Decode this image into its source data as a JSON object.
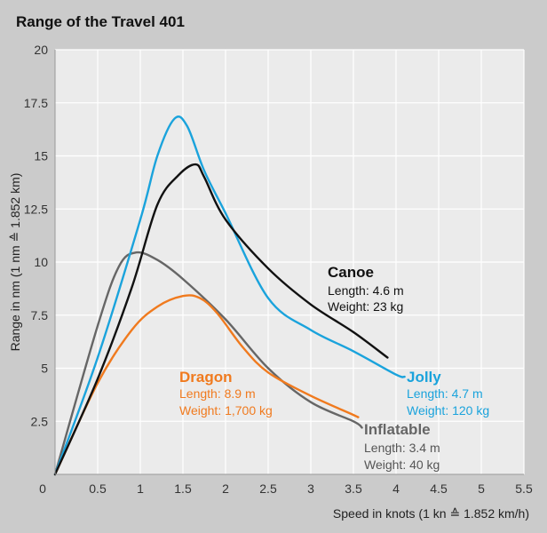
{
  "chart_data": {
    "type": "line",
    "title": "Range of the Travel 401",
    "xlabel": "Speed in knots (1 kn ≙ 1.852 km/h)",
    "ylabel": "Range in nm (1 nm ≙ 1.852 km)",
    "xlim": [
      0,
      5.5
    ],
    "ylim": [
      0,
      20
    ],
    "xticks": [
      "0",
      "0.5",
      "1",
      "1.5",
      "2",
      "2.5",
      "3",
      "3.5",
      "4",
      "4.5",
      "5",
      "5.5"
    ],
    "yticks": [
      "2.5",
      "5",
      "7.5",
      "10",
      "12.5",
      "15",
      "17.5",
      "20"
    ],
    "grid": true,
    "series": [
      {
        "name": "Canoe",
        "color": "#111111",
        "details": [
          "Length: 4.6 m",
          "Weight: 23 kg"
        ],
        "x": [
          0,
          0.5,
          0.9,
          1.2,
          1.45,
          1.65,
          1.75,
          2.0,
          2.5,
          3.0,
          3.5,
          3.9
        ],
        "y": [
          0,
          4.5,
          8.8,
          12.7,
          14.1,
          14.6,
          14.0,
          12.0,
          9.7,
          8.0,
          6.7,
          5.5
        ]
      },
      {
        "name": "Jolly",
        "color": "#1aa3dc",
        "details": [
          "Length: 4.7 m",
          "Weight: 120 kg"
        ],
        "x": [
          0,
          0.5,
          1.0,
          1.2,
          1.4,
          1.55,
          1.75,
          2.0,
          2.5,
          3.0,
          3.5,
          4.0,
          4.1
        ],
        "y": [
          0,
          5.5,
          12.0,
          15.0,
          16.75,
          16.4,
          14.3,
          12.3,
          8.3,
          6.8,
          5.8,
          4.7,
          4.6
        ]
      },
      {
        "name": "Inflatable",
        "color": "#666666",
        "details": [
          "Length: 3.4 m",
          "Weight: 40 kg"
        ],
        "x": [
          0,
          0.5,
          0.75,
          0.95,
          1.2,
          1.5,
          2.0,
          2.5,
          3.0,
          3.5,
          3.6
        ],
        "y": [
          0,
          7.0,
          9.8,
          10.45,
          10.1,
          9.2,
          7.3,
          5.0,
          3.4,
          2.5,
          2.2
        ]
      },
      {
        "name": "Dragon",
        "color": "#f07a1e",
        "details": [
          "Length: 8.9 m",
          "Weight: 1,700 kg"
        ],
        "x": [
          0,
          0.5,
          0.9,
          1.2,
          1.5,
          1.7,
          1.9,
          2.2,
          2.5,
          3.0,
          3.5,
          3.55
        ],
        "y": [
          0,
          4.3,
          6.8,
          7.9,
          8.4,
          8.3,
          7.6,
          6.0,
          4.8,
          3.7,
          2.8,
          2.7
        ]
      }
    ]
  }
}
